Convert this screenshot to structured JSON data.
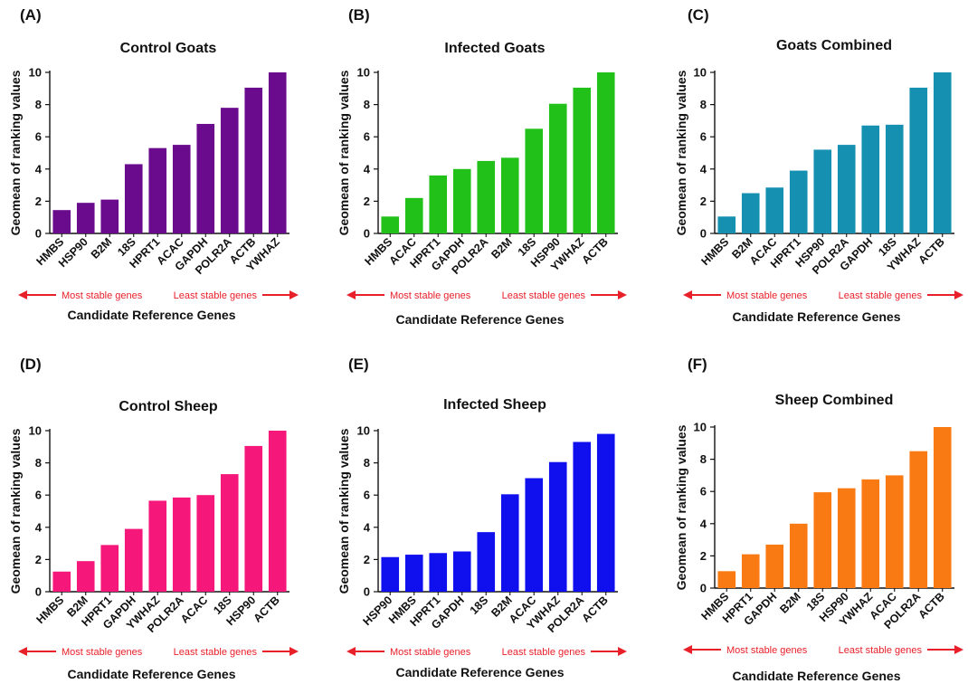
{
  "y_label": "Geomean of ranking values",
  "x_label": "Candidate Reference Genes",
  "arrow_left_text": "Most stable genes",
  "arrow_right_text": "Least stable genes",
  "arrow_color": "#e8202a",
  "chart_data": [
    {
      "type": "bar",
      "panel_label": "(A)",
      "title": "Control Goats",
      "categories": [
        "HMBS",
        "HSP90",
        "B2M",
        "18S",
        "HPRT1",
        "ACAC",
        "GAPDH",
        "POLR2A",
        "ACTB",
        "YWHAZ"
      ],
      "values": [
        1.45,
        1.9,
        2.1,
        4.3,
        5.3,
        5.5,
        6.8,
        7.8,
        9.05,
        10.0
      ],
      "ylim": [
        0,
        10
      ],
      "yticks": [
        0,
        2,
        4,
        6,
        8,
        10
      ],
      "xlabel": "Candidate Reference Genes",
      "ylabel": "Geomean of ranking values",
      "color": "#6a0a8c"
    },
    {
      "type": "bar",
      "panel_label": "(B)",
      "title": "Infected Goats",
      "categories": [
        "HMBS",
        "ACAC",
        "HPRT1",
        "GAPDH",
        "POLR2A",
        "B2M",
        "18S",
        "HSP90",
        "YWHAZ",
        "ACTB"
      ],
      "values": [
        1.05,
        2.2,
        3.6,
        4.0,
        4.5,
        4.7,
        6.5,
        8.05,
        9.05,
        10.0
      ],
      "ylim": [
        0,
        10
      ],
      "yticks": [
        0,
        2,
        4,
        6,
        8,
        10
      ],
      "xlabel": "Candidate Reference Genes",
      "ylabel": "Geomean of ranking values",
      "color": "#22c11a"
    },
    {
      "type": "bar",
      "panel_label": "(C)",
      "title": "Goats Combined",
      "categories": [
        "HMBS",
        "B2M",
        "ACAC",
        "HPRT1",
        "HSP90",
        "POLR2A",
        "GAPDH",
        "18S",
        "YWHAZ",
        "ACTB"
      ],
      "values": [
        1.05,
        2.5,
        2.85,
        3.9,
        5.2,
        5.5,
        6.7,
        6.75,
        9.05,
        10.0
      ],
      "ylim": [
        0,
        10
      ],
      "yticks": [
        0,
        2,
        4,
        6,
        8,
        10
      ],
      "xlabel": "Candidate Reference Genes",
      "ylabel": "Geomean of ranking values",
      "color": "#1590b0"
    },
    {
      "type": "bar",
      "panel_label": "(D)",
      "title": "Control Sheep",
      "categories": [
        "HMBS",
        "B2M",
        "HPRT1",
        "GAPDH",
        "YWHAZ",
        "POLR2A",
        "ACAC",
        "18S",
        "HSP90",
        "ACTB"
      ],
      "values": [
        1.25,
        1.9,
        2.9,
        3.9,
        5.65,
        5.85,
        6.0,
        7.3,
        9.05,
        10.0
      ],
      "ylim": [
        0,
        10
      ],
      "yticks": [
        0,
        2,
        4,
        6,
        8,
        10
      ],
      "xlabel": "Candidate Reference Genes",
      "ylabel": "Geomean of ranking values",
      "color": "#f5177a"
    },
    {
      "type": "bar",
      "panel_label": "(E)",
      "title": "Infected Sheep",
      "categories": [
        "HSP90",
        "HMBS",
        "HPRT1",
        "GAPDH",
        "18S",
        "B2M",
        "ACAC",
        "YWHAZ",
        "POLR2A",
        "ACTB"
      ],
      "values": [
        2.15,
        2.3,
        2.4,
        2.5,
        3.7,
        6.05,
        7.05,
        8.05,
        9.3,
        9.8
      ],
      "ylim": [
        0,
        10
      ],
      "yticks": [
        0,
        2,
        4,
        6,
        8,
        10
      ],
      "xlabel": "Candidate Reference Genes",
      "ylabel": "Geomean of ranking values",
      "color": "#1010ee"
    },
    {
      "type": "bar",
      "panel_label": "(F)",
      "title": "Sheep Combined",
      "categories": [
        "HMBS",
        "HPRT1",
        "GAPDH",
        "B2M",
        "18S",
        "HSP90",
        "YWHAZ",
        "ACAC",
        "POLR2A",
        "ACTB"
      ],
      "values": [
        1.05,
        2.1,
        2.7,
        4.0,
        5.95,
        6.2,
        6.75,
        7.0,
        8.5,
        10.0
      ],
      "ylim": [
        0,
        10
      ],
      "yticks": [
        0,
        2,
        4,
        6,
        8,
        10
      ],
      "xlabel": "Candidate Reference Genes",
      "ylabel": "Geomean of ranking values",
      "color": "#f97a12"
    }
  ]
}
